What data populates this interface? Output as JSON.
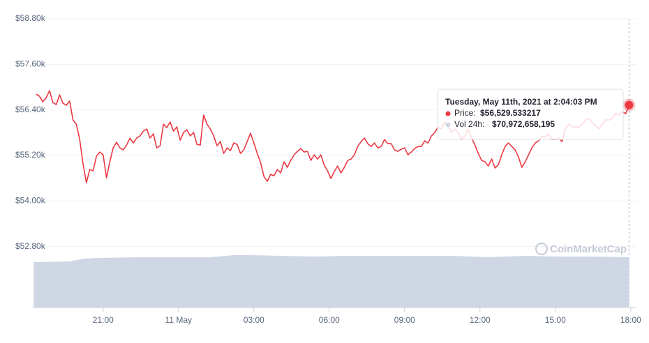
{
  "chart_data": {
    "type": "line",
    "xlim": [
      1092,
      2532
    ],
    "xticks": [
      {
        "value": 1260,
        "label": "21:00"
      },
      {
        "value": 1440,
        "label": "11 May"
      },
      {
        "value": 1620,
        "label": "03:00"
      },
      {
        "value": 1800,
        "label": "06:00"
      },
      {
        "value": 1980,
        "label": "09:00"
      },
      {
        "value": 2160,
        "label": "12:00"
      },
      {
        "value": 2340,
        "label": "15:00"
      },
      {
        "value": 2520,
        "label": "18:00"
      }
    ],
    "ylim": [
      51195,
      58800
    ],
    "yticks": [
      {
        "value": 52800,
        "label": "$52.80k"
      },
      {
        "value": 54000,
        "label": "$54.00k"
      },
      {
        "value": 55200,
        "label": "$55.20k"
      },
      {
        "value": 56400,
        "label": "$56.40k"
      },
      {
        "value": 57600,
        "label": "$57.60k"
      },
      {
        "value": 58800,
        "label": "$58.80k"
      }
    ],
    "y2lim": [
      0,
      408000000000
    ],
    "grid": true,
    "series": [
      {
        "name": "Price:",
        "color": "#ea3943",
        "x": [
          1100,
          1108,
          1116,
          1124,
          1132,
          1140,
          1148,
          1156,
          1164,
          1172,
          1180,
          1188,
          1196,
          1204,
          1212,
          1220,
          1228,
          1236,
          1244,
          1252,
          1260,
          1268,
          1276,
          1284,
          1292,
          1300,
          1308,
          1316,
          1324,
          1332,
          1340,
          1348,
          1356,
          1364,
          1372,
          1380,
          1388,
          1396,
          1404,
          1412,
          1420,
          1428,
          1436,
          1444,
          1452,
          1460,
          1468,
          1476,
          1484,
          1492,
          1500,
          1508,
          1516,
          1524,
          1532,
          1540,
          1548,
          1556,
          1564,
          1572,
          1580,
          1588,
          1596,
          1604,
          1612,
          1620,
          1628,
          1636,
          1644,
          1652,
          1660,
          1668,
          1676,
          1684,
          1692,
          1700,
          1708,
          1716,
          1724,
          1732,
          1740,
          1748,
          1756,
          1764,
          1772,
          1780,
          1788,
          1796,
          1804,
          1812,
          1820,
          1828,
          1836,
          1844,
          1852,
          1860,
          1868,
          1876,
          1884,
          1892,
          1900,
          1908,
          1916,
          1924,
          1932,
          1940,
          1948,
          1956,
          1964,
          1972,
          1980,
          1988,
          1996,
          2004,
          2012,
          2020,
          2028,
          2036,
          2044,
          2052,
          2060,
          2068,
          2076,
          2084,
          2092,
          2100,
          2108,
          2116,
          2124,
          2132,
          2140,
          2148,
          2156,
          2164,
          2172,
          2180,
          2188,
          2196,
          2204,
          2212,
          2220,
          2228,
          2236,
          2244,
          2252,
          2260,
          2268,
          2276,
          2284,
          2292,
          2300,
          2308,
          2316,
          2324,
          2332,
          2340,
          2348,
          2356,
          2364,
          2372,
          2380,
          2388,
          2396,
          2404,
          2412,
          2420,
          2428,
          2436,
          2444,
          2452,
          2460,
          2468,
          2476,
          2484,
          2492,
          2500,
          2508,
          2516
        ],
        "values": [
          56815,
          56760,
          56613,
          56723,
          56907,
          56595,
          56540,
          56797,
          56576,
          56521,
          56632,
          56135,
          56025,
          55621,
          54978,
          54481,
          54831,
          54794,
          55180,
          55290,
          55216,
          54610,
          55033,
          55400,
          55547,
          55400,
          55345,
          55474,
          55658,
          55529,
          55658,
          55713,
          55841,
          55896,
          55658,
          55768,
          55400,
          55455,
          56025,
          55933,
          56080,
          55841,
          55952,
          55602,
          55805,
          55878,
          55713,
          55805,
          55492,
          55474,
          56264,
          56025,
          55896,
          55713,
          55455,
          55566,
          55253,
          55400,
          55327,
          55529,
          55492,
          55253,
          55345,
          55566,
          55786,
          55529,
          55253,
          55014,
          54647,
          54518,
          54702,
          54665,
          54831,
          54739,
          55033,
          54886,
          55069,
          55216,
          55308,
          55382,
          55290,
          55308,
          55069,
          55216,
          55106,
          55216,
          54941,
          54794,
          54592,
          54775,
          54922,
          54739,
          54886,
          55069,
          55106,
          55216,
          55437,
          55566,
          55658,
          55510,
          55437,
          55529,
          55400,
          55437,
          55621,
          55510,
          55510,
          55345,
          55308,
          55364,
          55400,
          55216,
          55290,
          55382,
          55437,
          55437,
          55584,
          55529,
          55713,
          55805,
          55952,
          55896,
          56080,
          55988,
          55805,
          55896,
          55805,
          55621,
          55713,
          55896,
          55658,
          55474,
          55253,
          55069,
          55033,
          54922,
          55106,
          54867,
          54959,
          55216,
          55437,
          55529,
          55437,
          55345,
          55161,
          54886,
          55033,
          55216,
          55400,
          55529,
          55584,
          55713,
          55676,
          55768,
          55621,
          55621,
          55658,
          55566,
          55896,
          56025,
          55952,
          55952,
          55952,
          56025,
          56135,
          56172,
          56062,
          55988,
          55896,
          56025,
          56135,
          56135,
          56172,
          56319,
          56264,
          56356,
          56301,
          56529.533217
        ]
      },
      {
        "name": "Vol 24h:",
        "color": "#cfd6e4",
        "axis": "y2",
        "x": [
          1094,
          1180,
          1214,
          1247,
          1347,
          1430,
          1514,
          1572,
          1614,
          1680,
          1764,
          1847,
          1930,
          2014,
          2097,
          2180,
          2264,
          2347,
          2430,
          2516
        ],
        "values": [
          64070000000,
          65060000000,
          69000000000,
          69980000000,
          70970000000,
          70970000000,
          70970000000,
          73930000000,
          73930000000,
          72940000000,
          71960000000,
          72940000000,
          72940000000,
          72940000000,
          72940000000,
          70970000000,
          72940000000,
          71960000000,
          71960000000,
          70972658195
        ]
      }
    ],
    "tooltip": {
      "date": "Tuesday, May 11th, 2021 at 2:04:03 PM",
      "price": "$56,529.533217",
      "volume": "$70,972,658,195"
    },
    "watermark": "CoinMarketCap"
  }
}
